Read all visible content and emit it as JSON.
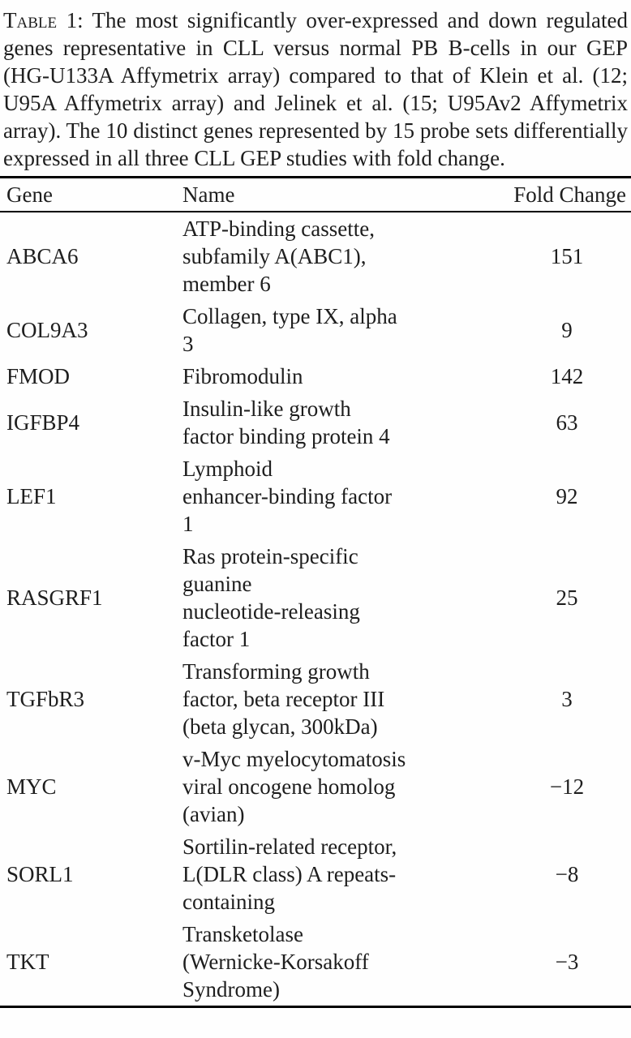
{
  "caption": {
    "label": "Table",
    "number": "1:",
    "body": "The most significantly over-expressed and down regulated genes representative in CLL versus normal PB B-cells in our GEP (HG-U133A Affymetrix array) compared to that of Klein et al. (12; U95A Affymetrix array) and Jelinek et al. (15; U95Av2 Affymetrix array). The 10 distinct genes represented by 15 probe sets differentially expressed in all three CLL GEP studies with fold change."
  },
  "table": {
    "headers": [
      "Gene",
      "Name",
      "Fold Change"
    ],
    "rows": [
      {
        "gene": "ABCA6",
        "name": "ATP-binding cassette, subfamily A(ABC1), member 6",
        "name_lines": [
          "ATP-binding cassette,",
          "subfamily A(ABC1),",
          "member 6"
        ],
        "fold_change": "151"
      },
      {
        "gene": "COL9A3",
        "name": "Collagen, type IX, alpha 3",
        "name_lines": [
          "Collagen, type IX, alpha",
          "3"
        ],
        "fold_change": "9"
      },
      {
        "gene": "FMOD",
        "name": "Fibromodulin",
        "name_lines": [
          "Fibromodulin"
        ],
        "fold_change": "142"
      },
      {
        "gene": "IGFBP4",
        "name": "Insulin-like growth factor binding protein 4",
        "name_lines": [
          "Insulin-like growth",
          "factor binding protein 4"
        ],
        "fold_change": "63"
      },
      {
        "gene": "LEF1",
        "name": "Lymphoid enhancer-binding factor 1",
        "name_lines": [
          "Lymphoid",
          "enhancer-binding factor",
          "1"
        ],
        "fold_change": "92"
      },
      {
        "gene": "RASGRF1",
        "name": "Ras protein-specific guanine nucleotide-releasing factor 1",
        "name_lines": [
          "Ras protein-specific",
          "guanine",
          "nucleotide-releasing",
          "factor 1"
        ],
        "fold_change": "25"
      },
      {
        "gene": "TGFbR3",
        "name": "Transforming growth factor, beta receptor III (beta glycan, 300kDa)",
        "name_lines": [
          "Transforming growth",
          "factor, beta receptor III",
          "(beta glycan, 300kDa)"
        ],
        "fold_change": "3"
      },
      {
        "gene": "MYC",
        "name": "v-Myc myelocytomatosis viral oncogene homolog (avian)",
        "name_lines": [
          "v-Myc myelocytomatosis",
          "viral oncogene homolog",
          "(avian)"
        ],
        "fold_change": "−12"
      },
      {
        "gene": "SORL1",
        "name": "Sortilin-related receptor, L(DLR class) A repeats-containing",
        "name_lines": [
          "Sortilin-related receptor,",
          "L(DLR class) A repeats-",
          "containing"
        ],
        "fold_change": "−8"
      },
      {
        "gene": "TKT",
        "name": "Transketolase (Wernicke-Korsakoff Syndrome)",
        "name_lines": [
          "Transketolase",
          "(Wernicke-Korsakoff",
          "Syndrome)"
        ],
        "fold_change": "−3"
      }
    ]
  },
  "colors": {
    "text": "#1e1e1e",
    "rule": "#000000",
    "background": "#fefefe"
  }
}
